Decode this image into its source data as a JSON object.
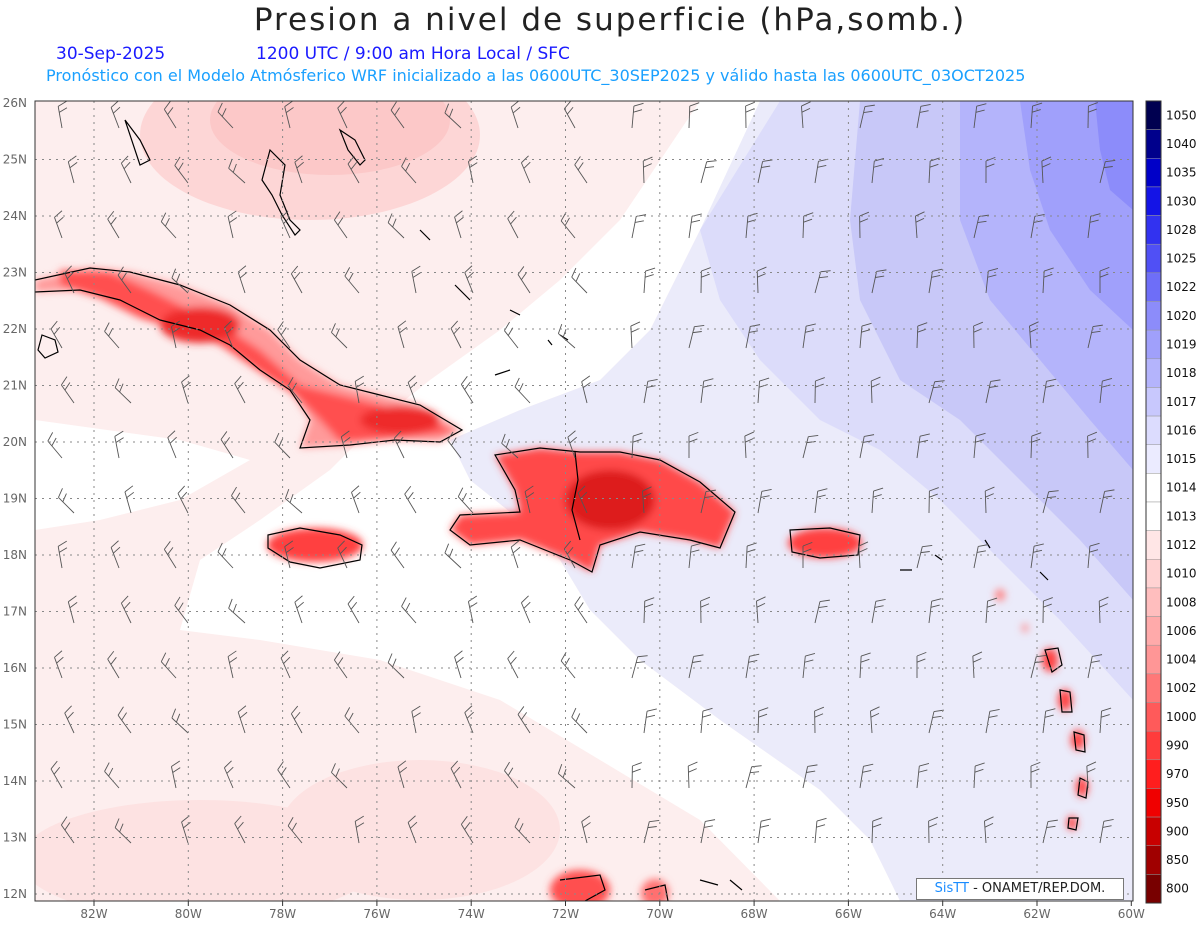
{
  "header": {
    "title": "Presion a nivel de superficie (hPa,somb.)",
    "date": "30-Sep-2025",
    "time_info": "1200 UTC / 9:00 am Hora Local / SFC",
    "model_info": "Pronóstico con el Modelo Atmósferico WRF inicializado a las 0600UTC_30SEP2025 y válido hasta las  0600UTC_03OCT2025"
  },
  "axes": {
    "lon_labels": [
      "82W",
      "80W",
      "78W",
      "76W",
      "74W",
      "72W",
      "70W",
      "68W",
      "66W",
      "64W",
      "62W",
      "60W"
    ],
    "lat_labels": [
      "26N",
      "25N",
      "24N",
      "23N",
      "22N",
      "21N",
      "20N",
      "19N",
      "18N",
      "17N",
      "16N",
      "15N",
      "14N",
      "13N",
      "12N"
    ]
  },
  "colorbar": {
    "levels": [
      "1050",
      "1040",
      "1035",
      "1030",
      "1028",
      "1025",
      "1022",
      "1020",
      "1019",
      "1018",
      "1017",
      "1016",
      "1015",
      "1014",
      "1013",
      "1012",
      "1010",
      "1008",
      "1006",
      "1004",
      "1002",
      "1000",
      "990",
      "970",
      "950",
      "900",
      "850",
      "800"
    ],
    "colors": [
      "#000050",
      "#00008c",
      "#0000c8",
      "#1414e6",
      "#3232f0",
      "#5050f5",
      "#6e6ef8",
      "#8c8cfa",
      "#a0a0fb",
      "#b4b4fc",
      "#c8c8fd",
      "#dcdcfe",
      "#ebebff",
      "#ffffff",
      "#ffffff",
      "#ffe6e6",
      "#ffd2d2",
      "#ffbebe",
      "#ffaaaa",
      "#ff9696",
      "#ff7878",
      "#ff5a5a",
      "#ff3c3c",
      "#ff1e1e",
      "#f00000",
      "#c80000",
      "#a00000",
      "#780000"
    ]
  },
  "credit": {
    "sis": "SisTT",
    "org": " - ONAMET/REP.DOM."
  },
  "islands": [
    "Cuba",
    "La Española",
    "Jamaica",
    "Puerto Rico",
    "Bahamas",
    "Antillas Menores"
  ]
}
